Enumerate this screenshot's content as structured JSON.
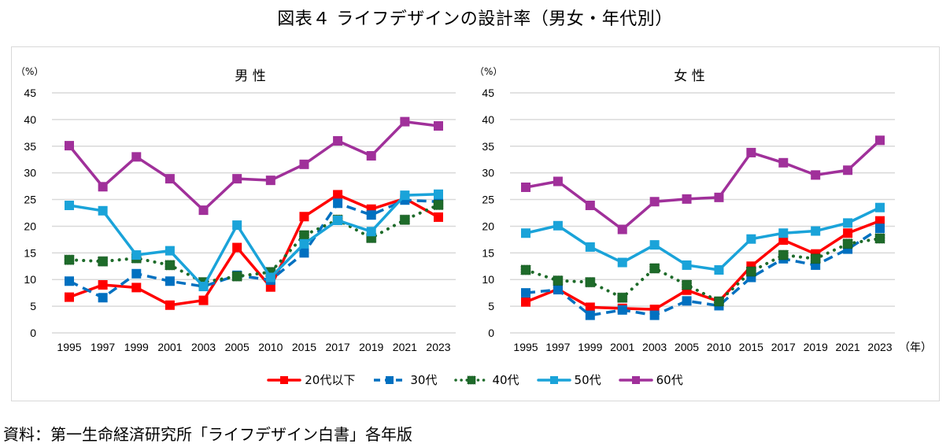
{
  "figure_title": "図表４ ライフデザインの設計率（男女・年代別）",
  "source_note": "資料：第一生命経済研究所「ライフデザイン白書」各年版",
  "chart_data": [
    {
      "type": "line",
      "title": "男 性",
      "ylabel": "（%）",
      "xlabel": "",
      "ylim": [
        0,
        45
      ],
      "yticks": [
        "0",
        "5",
        "10",
        "15",
        "20",
        "25",
        "30",
        "35",
        "40",
        "45"
      ],
      "grid": true,
      "categories": [
        "1995",
        "1997",
        "1999",
        "2001",
        "2003",
        "2005",
        "2010",
        "2015",
        "2017",
        "2019",
        "2021",
        "2023"
      ],
      "series": [
        {
          "name": "20代以下",
          "color": "#ff0000",
          "style": "solid",
          "values": [
            6.7,
            9.0,
            8.5,
            5.2,
            6.1,
            16.0,
            8.6,
            21.8,
            25.9,
            23.2,
            25.2,
            21.7
          ]
        },
        {
          "name": "30代",
          "color": "#0070c0",
          "style": "dashed",
          "values": [
            9.7,
            6.6,
            11.1,
            9.7,
            8.7,
            10.8,
            9.9,
            15.0,
            24.3,
            22.1,
            24.9,
            24.6
          ]
        },
        {
          "name": "40代",
          "color": "#1e6b2a",
          "style": "dotted",
          "values": [
            13.7,
            13.4,
            14.0,
            12.7,
            9.5,
            10.6,
            11.4,
            18.3,
            21.2,
            17.8,
            21.2,
            24.0
          ]
        },
        {
          "name": "50代",
          "color": "#1aa3d9",
          "style": "solid",
          "values": [
            23.9,
            22.9,
            14.6,
            15.4,
            8.7,
            20.2,
            10.4,
            16.7,
            21.1,
            19.0,
            25.8,
            26.0
          ]
        },
        {
          "name": "60代",
          "color": "#a0309a",
          "style": "solid",
          "values": [
            35.1,
            27.4,
            33.0,
            28.9,
            23.0,
            28.9,
            28.6,
            31.6,
            36.0,
            33.2,
            39.6,
            38.8
          ]
        }
      ]
    },
    {
      "type": "line",
      "title": "女 性",
      "ylabel": "（%）",
      "xlabel": "（年）",
      "ylim": [
        0,
        45
      ],
      "yticks": [
        "0",
        "5",
        "10",
        "15",
        "20",
        "25",
        "30",
        "35",
        "40",
        "45"
      ],
      "grid": true,
      "categories": [
        "1995",
        "1997",
        "1999",
        "2001",
        "2003",
        "2005",
        "2010",
        "2015",
        "2017",
        "2019",
        "2021",
        "2023"
      ],
      "series": [
        {
          "name": "20代以下",
          "color": "#ff0000",
          "style": "solid",
          "values": [
            5.8,
            8.2,
            4.8,
            4.6,
            4.4,
            8.0,
            5.9,
            12.5,
            17.4,
            14.8,
            18.7,
            21.0
          ]
        },
        {
          "name": "30代",
          "color": "#0070c0",
          "style": "dashed",
          "values": [
            7.5,
            8.1,
            3.3,
            4.3,
            3.3,
            6.0,
            5.1,
            10.4,
            13.9,
            12.7,
            15.7,
            19.6
          ]
        },
        {
          "name": "40代",
          "color": "#1e6b2a",
          "style": "dotted",
          "values": [
            11.8,
            9.8,
            9.5,
            6.6,
            12.1,
            9.0,
            5.9,
            11.5,
            14.6,
            13.9,
            16.7,
            17.7
          ]
        },
        {
          "name": "50代",
          "color": "#1aa3d9",
          "style": "solid",
          "values": [
            18.7,
            20.1,
            16.1,
            13.2,
            16.5,
            12.7,
            11.8,
            17.6,
            18.7,
            19.1,
            20.6,
            23.5
          ]
        },
        {
          "name": "60代",
          "color": "#a0309a",
          "style": "solid",
          "values": [
            27.3,
            28.4,
            23.9,
            19.4,
            24.6,
            25.1,
            25.4,
            33.8,
            31.9,
            29.6,
            30.5,
            36.1
          ]
        }
      ]
    }
  ],
  "legend": {
    "placement": "bottom-center",
    "items": [
      {
        "label": "20代以下",
        "color": "#ff0000",
        "style": "solid"
      },
      {
        "label": "30代",
        "color": "#0070c0",
        "style": "dashed"
      },
      {
        "label": "40代",
        "color": "#1e6b2a",
        "style": "dotted"
      },
      {
        "label": "50代",
        "color": "#1aa3d9",
        "style": "solid"
      },
      {
        "label": "60代",
        "color": "#a0309a",
        "style": "solid"
      }
    ]
  }
}
